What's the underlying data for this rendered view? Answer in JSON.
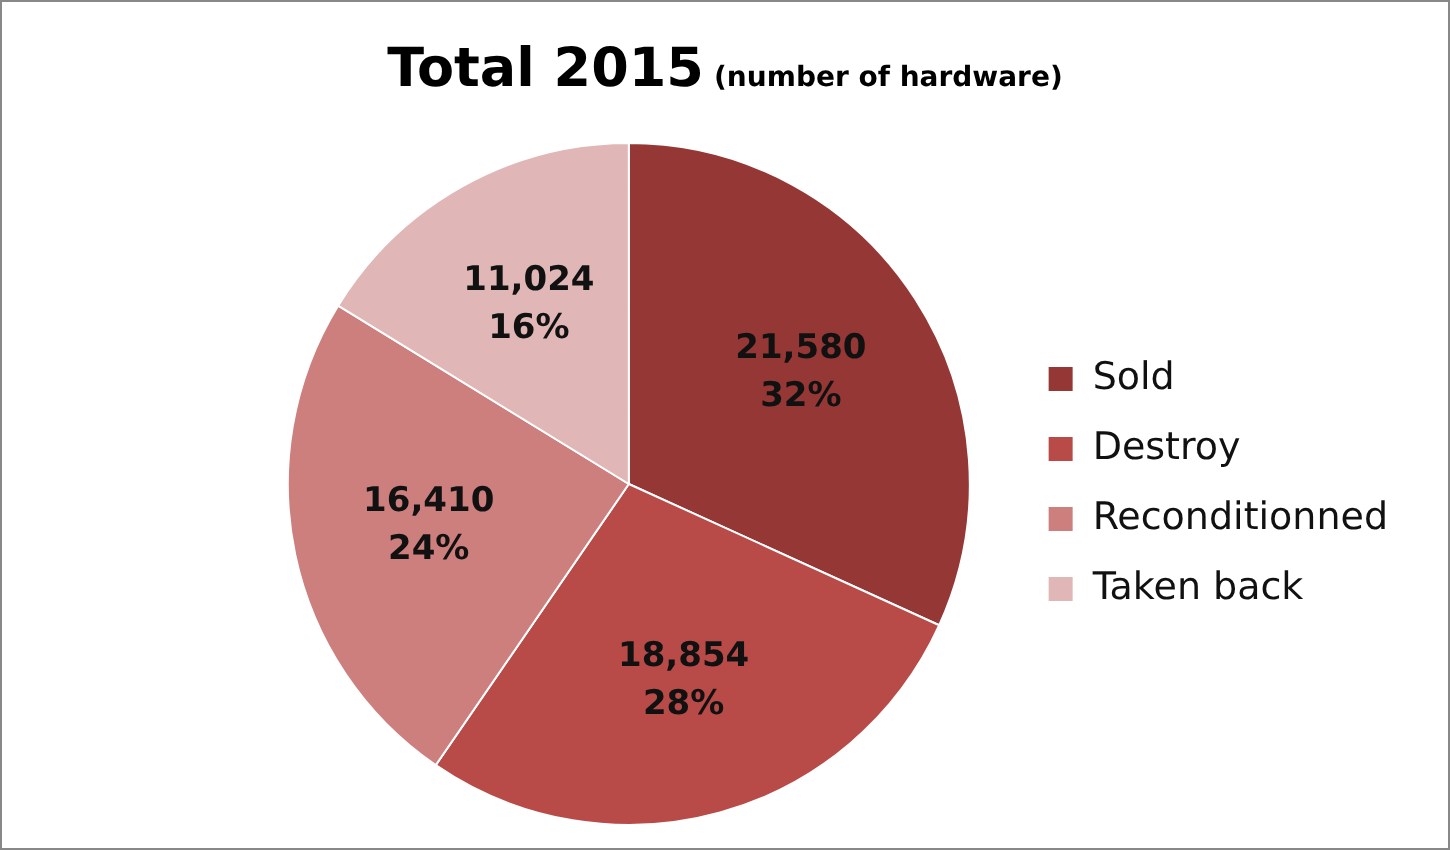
{
  "chart_data": {
    "type": "pie",
    "title": "Total 2015",
    "subtitle": "(number of hardware)",
    "categories": [
      "Sold",
      "Destroy",
      "Reconditionned",
      "Taken back"
    ],
    "values": [
      21580,
      18854,
      16410,
      11024
    ],
    "colors": [
      "#953735",
      "#b84b48",
      "#cd7f7d",
      "#e0b7b6"
    ],
    "value_labels": [
      "21,580\n32%",
      "18,854\n28%",
      "16,410\n24%",
      "11,024\n16%"
    ],
    "legend": "right"
  }
}
